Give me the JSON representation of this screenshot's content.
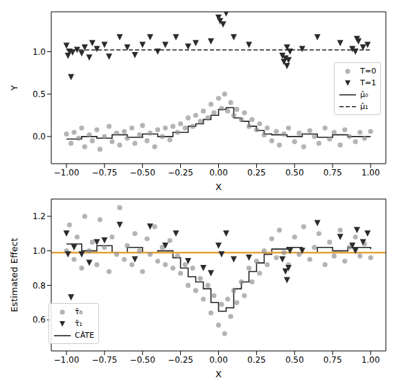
{
  "chart_data": [
    {
      "type": "scatter",
      "xlabel": "X",
      "ylabel": "Y",
      "xlim": [
        -1.1,
        1.1
      ],
      "ylim": [
        -0.32,
        1.47
      ],
      "xticks": [
        {
          "value": -1,
          "label": "−1.00"
        },
        {
          "value": -0.75,
          "label": "−0.75"
        },
        {
          "value": -0.5,
          "label": "−0.50"
        },
        {
          "value": -0.25,
          "label": "−0.25"
        },
        {
          "value": 0,
          "label": "0.00"
        },
        {
          "value": 0.25,
          "label": "0.25"
        },
        {
          "value": 0.5,
          "label": "0.50"
        },
        {
          "value": 0.75,
          "label": "0.75"
        },
        {
          "value": 1,
          "label": "1.00"
        }
      ],
      "yticks": [
        {
          "value": 0,
          "label": "0.0"
        },
        {
          "value": 0.5,
          "label": "0.5"
        },
        {
          "value": 1,
          "label": "1.0"
        }
      ],
      "legend": "center right",
      "series": [
        {
          "name": "T=0",
          "type": "scatter",
          "marker": "circle",
          "color": "#8c8c8c",
          "x": [
            -1.0,
            -0.97,
            -0.95,
            -0.92,
            -0.9,
            -0.88,
            -0.85,
            -0.83,
            -0.8,
            -0.78,
            -0.75,
            -0.72,
            -0.7,
            -0.67,
            -0.65,
            -0.62,
            -0.6,
            -0.57,
            -0.55,
            -0.52,
            -0.5,
            -0.47,
            -0.45,
            -0.42,
            -0.4,
            -0.37,
            -0.35,
            -0.32,
            -0.3,
            -0.27,
            -0.25,
            -0.22,
            -0.2,
            -0.17,
            -0.15,
            -0.12,
            -0.1,
            -0.07,
            -0.05,
            -0.03,
            0.0,
            0.02,
            0.04,
            0.06,
            0.08,
            0.1,
            0.12,
            0.15,
            0.17,
            0.2,
            0.22,
            0.25,
            0.27,
            0.3,
            0.32,
            0.35,
            0.38,
            0.4,
            0.43,
            0.46,
            0.5,
            0.53,
            0.56,
            0.6,
            0.63,
            0.66,
            0.7,
            0.73,
            0.76,
            0.8,
            0.83,
            0.86,
            0.9,
            0.93,
            0.96,
            1.0
          ],
          "values": [
            0.03,
            -0.08,
            0.05,
            -0.02,
            0.1,
            -0.12,
            0.02,
            -0.05,
            0.08,
            -0.15,
            0.0,
            0.12,
            -0.06,
            0.04,
            -0.1,
            0.06,
            -0.02,
            0.1,
            -0.08,
            0.02,
            0.13,
            -0.05,
            0.04,
            -0.12,
            0.08,
            0.0,
            0.1,
            -0.04,
            0.12,
            0.05,
            0.15,
            0.1,
            0.22,
            0.12,
            0.25,
            0.18,
            0.3,
            0.22,
            0.38,
            0.28,
            0.45,
            0.33,
            0.5,
            0.3,
            0.4,
            0.25,
            0.32,
            0.2,
            0.28,
            0.12,
            0.2,
            0.08,
            0.15,
            0.02,
            0.1,
            -0.05,
            0.06,
            -0.1,
            0.03,
            0.1,
            -0.06,
            0.04,
            -0.12,
            0.07,
            0.0,
            -0.08,
            0.1,
            -0.03,
            0.05,
            -0.1,
            0.08,
            0.0,
            -0.06,
            0.05,
            -0.02,
            0.06
          ]
        },
        {
          "name": "T=1",
          "type": "scatter",
          "marker": "triangle_down",
          "color": "#2b2b2b",
          "x": [
            -1.0,
            -0.99,
            -0.98,
            -0.96,
            -0.97,
            -0.93,
            -0.9,
            -0.88,
            -0.85,
            -0.83,
            -0.8,
            -0.75,
            -0.72,
            -0.65,
            -0.6,
            -0.55,
            -0.5,
            -0.45,
            -0.4,
            -0.35,
            -0.28,
            -0.2,
            -0.15,
            -0.05,
            0.0,
            0.01,
            0.03,
            0.05,
            0.1,
            0.2,
            0.42,
            0.43,
            0.44,
            0.45,
            0.46,
            0.47,
            0.45,
            0.55,
            0.65,
            0.8,
            0.88,
            0.9,
            0.91,
            0.92,
            0.95,
            0.98
          ],
          "values": [
            1.07,
            0.95,
            1.0,
            0.99,
            0.7,
            1.02,
            0.98,
            1.05,
            0.93,
            1.1,
            1.03,
            1.08,
            0.94,
            1.17,
            1.05,
            0.96,
            1.08,
            1.17,
            1.0,
            1.08,
            1.17,
            1.06,
            1.1,
            1.12,
            1.4,
            1.36,
            1.32,
            1.45,
            1.17,
            1.08,
            0.95,
            0.88,
            0.92,
            0.83,
            0.9,
            1.0,
            1.05,
            1.03,
            1.17,
            1.1,
            1.03,
            1.0,
            1.15,
            1.12,
            1.05,
            1.08
          ]
        },
        {
          "name": "μ̂₀",
          "type": "line",
          "line_style": "solid",
          "color": "#222222",
          "x": [
            -1.0,
            -0.9,
            -0.8,
            -0.7,
            -0.6,
            -0.5,
            -0.4,
            -0.3,
            -0.2,
            -0.15,
            -0.1,
            -0.05,
            0.0,
            0.05,
            0.1,
            0.15,
            0.2,
            0.25,
            0.3,
            0.35,
            0.45,
            0.55,
            0.65,
            0.75,
            0.85,
            1.0
          ],
          "values": [
            -0.03,
            0.0,
            -0.02,
            0.02,
            -0.01,
            0.03,
            0.0,
            0.05,
            0.12,
            0.15,
            0.2,
            0.25,
            0.32,
            0.34,
            0.22,
            0.18,
            0.12,
            0.07,
            0.03,
            0.02,
            0.0,
            0.03,
            -0.01,
            0.02,
            0.0,
            0.0
          ]
        },
        {
          "name": "μ̂₁",
          "type": "line",
          "line_style": "dashed",
          "color": "#222222",
          "x": [
            -1.0,
            1.0
          ],
          "values": [
            1.02,
            1.02
          ]
        }
      ]
    },
    {
      "type": "scatter",
      "xlabel": "X",
      "ylabel": "Estimated Effect",
      "xlim": [
        -1.1,
        1.1
      ],
      "ylim": [
        0.42,
        1.3
      ],
      "xticks": [
        {
          "value": -1,
          "label": "−1.00"
        },
        {
          "value": -0.75,
          "label": "−0.75"
        },
        {
          "value": -0.5,
          "label": "−0.50"
        },
        {
          "value": -0.25,
          "label": "−0.25"
        },
        {
          "value": 0,
          "label": "0.00"
        },
        {
          "value": 0.25,
          "label": "0.25"
        },
        {
          "value": 0.5,
          "label": "0.50"
        },
        {
          "value": 0.75,
          "label": "0.75"
        },
        {
          "value": 1,
          "label": "1.00"
        }
      ],
      "yticks": [
        0.6,
        0.8,
        {
          "value": 1,
          "label": "1.0"
        },
        1.2
      ],
      "legend": "lower left",
      "series": [
        {
          "name": "τ̂₀",
          "type": "scatter",
          "marker": "circle",
          "color": "#8c8c8c",
          "x": [
            -1.0,
            -0.98,
            -0.95,
            -0.93,
            -0.9,
            -0.88,
            -0.85,
            -0.83,
            -0.8,
            -0.78,
            -0.75,
            -0.72,
            -0.7,
            -0.67,
            -0.65,
            -0.62,
            -0.6,
            -0.57,
            -0.55,
            -0.52,
            -0.5,
            -0.47,
            -0.45,
            -0.42,
            -0.4,
            -0.37,
            -0.35,
            -0.32,
            -0.3,
            -0.27,
            -0.25,
            -0.22,
            -0.2,
            -0.17,
            -0.15,
            -0.12,
            -0.1,
            -0.07,
            -0.05,
            -0.03,
            0.0,
            0.02,
            0.04,
            0.06,
            0.08,
            0.1,
            0.12,
            0.15,
            0.17,
            0.2,
            0.22,
            0.25,
            0.27,
            0.3,
            0.32,
            0.35,
            0.38,
            0.4,
            0.43,
            0.46,
            0.5,
            0.53,
            0.56,
            0.6,
            0.63,
            0.66,
            0.7,
            0.73,
            0.76,
            0.8,
            0.83,
            0.86,
            0.9,
            0.93,
            0.96,
            1.0
          ],
          "values": [
            1.0,
            1.15,
            0.95,
            1.08,
            0.9,
            1.2,
            1.0,
            1.05,
            0.92,
            1.18,
            1.02,
            0.88,
            1.08,
            0.98,
            1.25,
            0.95,
            1.03,
            0.92,
            1.1,
            1.0,
            0.88,
            1.07,
            0.98,
            1.14,
            0.94,
            1.02,
            0.92,
            1.06,
            0.9,
            0.97,
            0.87,
            0.92,
            0.8,
            0.9,
            0.77,
            0.84,
            0.72,
            0.8,
            0.64,
            0.74,
            0.57,
            0.69,
            0.52,
            0.72,
            0.62,
            0.77,
            0.7,
            0.82,
            0.74,
            0.9,
            0.82,
            0.94,
            0.87,
            1.0,
            0.92,
            1.07,
            0.96,
            1.12,
            0.99,
            0.92,
            1.08,
            0.98,
            1.14,
            0.95,
            1.02,
            1.1,
            0.92,
            1.05,
            0.97,
            1.12,
            0.94,
            1.02,
            1.08,
            0.97,
            1.04,
            0.96
          ]
        },
        {
          "name": "τ̂₁",
          "type": "scatter",
          "marker": "triangle_down",
          "color": "#2b2b2b",
          "x": [
            -1.0,
            -0.99,
            -0.97,
            -0.95,
            -0.9,
            -0.85,
            -0.8,
            -0.75,
            -0.65,
            -0.55,
            -0.45,
            -0.35,
            -0.28,
            -0.2,
            -0.1,
            -0.05,
            0.0,
            0.02,
            0.05,
            0.1,
            0.2,
            0.42,
            0.44,
            0.45,
            0.46,
            0.47,
            0.55,
            0.65,
            0.8,
            0.88,
            0.9,
            0.91,
            0.95,
            0.98
          ],
          "values": [
            1.1,
            0.98,
            0.73,
            1.02,
            0.98,
            0.93,
            1.05,
            1.06,
            1.15,
            0.95,
            1.14,
            1.03,
            1.1,
            0.94,
            0.9,
            0.87,
            1.03,
            0.98,
            1.1,
            0.95,
            0.96,
            0.95,
            0.88,
            0.83,
            0.9,
            1.0,
            1.0,
            1.16,
            1.08,
            1.03,
            1.0,
            1.12,
            1.05,
            1.1
          ]
        },
        {
          "name": "CÂTE",
          "type": "line",
          "line_style": "solid",
          "color": "#222222",
          "x": [
            -1.0,
            -0.9,
            -0.8,
            -0.7,
            -0.6,
            -0.5,
            -0.4,
            -0.3,
            -0.25,
            -0.2,
            -0.15,
            -0.1,
            -0.05,
            0.0,
            0.05,
            0.1,
            0.15,
            0.2,
            0.25,
            0.3,
            0.35,
            0.45,
            0.55,
            0.65,
            0.75,
            0.85,
            1.0
          ],
          "values": [
            1.04,
            1.0,
            1.03,
            0.99,
            1.02,
            0.99,
            1.0,
            0.96,
            0.9,
            0.85,
            0.82,
            0.78,
            0.7,
            0.65,
            0.67,
            0.78,
            0.82,
            0.88,
            0.93,
            0.98,
            1.01,
            1.02,
            0.99,
            1.02,
            1.0,
            1.02,
            1.01
          ]
        },
        {
          "type": "line",
          "line_style": "solid",
          "color": "#e6a23c",
          "x": [
            -1.1,
            1.1
          ],
          "values": [
            0.99,
            0.99
          ]
        }
      ]
    }
  ]
}
